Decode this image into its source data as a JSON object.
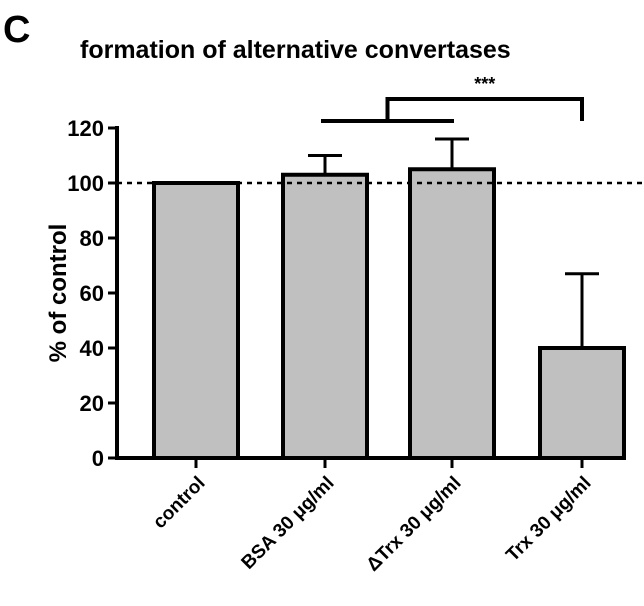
{
  "panel_label": "C",
  "chart_data": {
    "type": "bar",
    "title": "formation of alternative convertases",
    "ylabel": "% of control",
    "xlabel": "",
    "ylim": [
      0,
      120
    ],
    "yticks": [
      0,
      20,
      40,
      60,
      80,
      100,
      120
    ],
    "categories": [
      "control",
      "BSA 30 μg/ml",
      "ΔTrx 30 μg/ml",
      "Trx 30 μg/ml"
    ],
    "values": [
      100,
      103,
      105,
      40
    ],
    "errors": [
      0,
      7,
      11,
      27
    ],
    "reference_line": 100,
    "significance": {
      "label": "***",
      "group": [
        "BSA 30 μg/ml",
        "ΔTrx 30 μg/ml"
      ],
      "compared_to": "Trx 30 μg/ml"
    },
    "bar_color": "#c0c0c0",
    "edge_color": "#000000",
    "grid": false
  }
}
